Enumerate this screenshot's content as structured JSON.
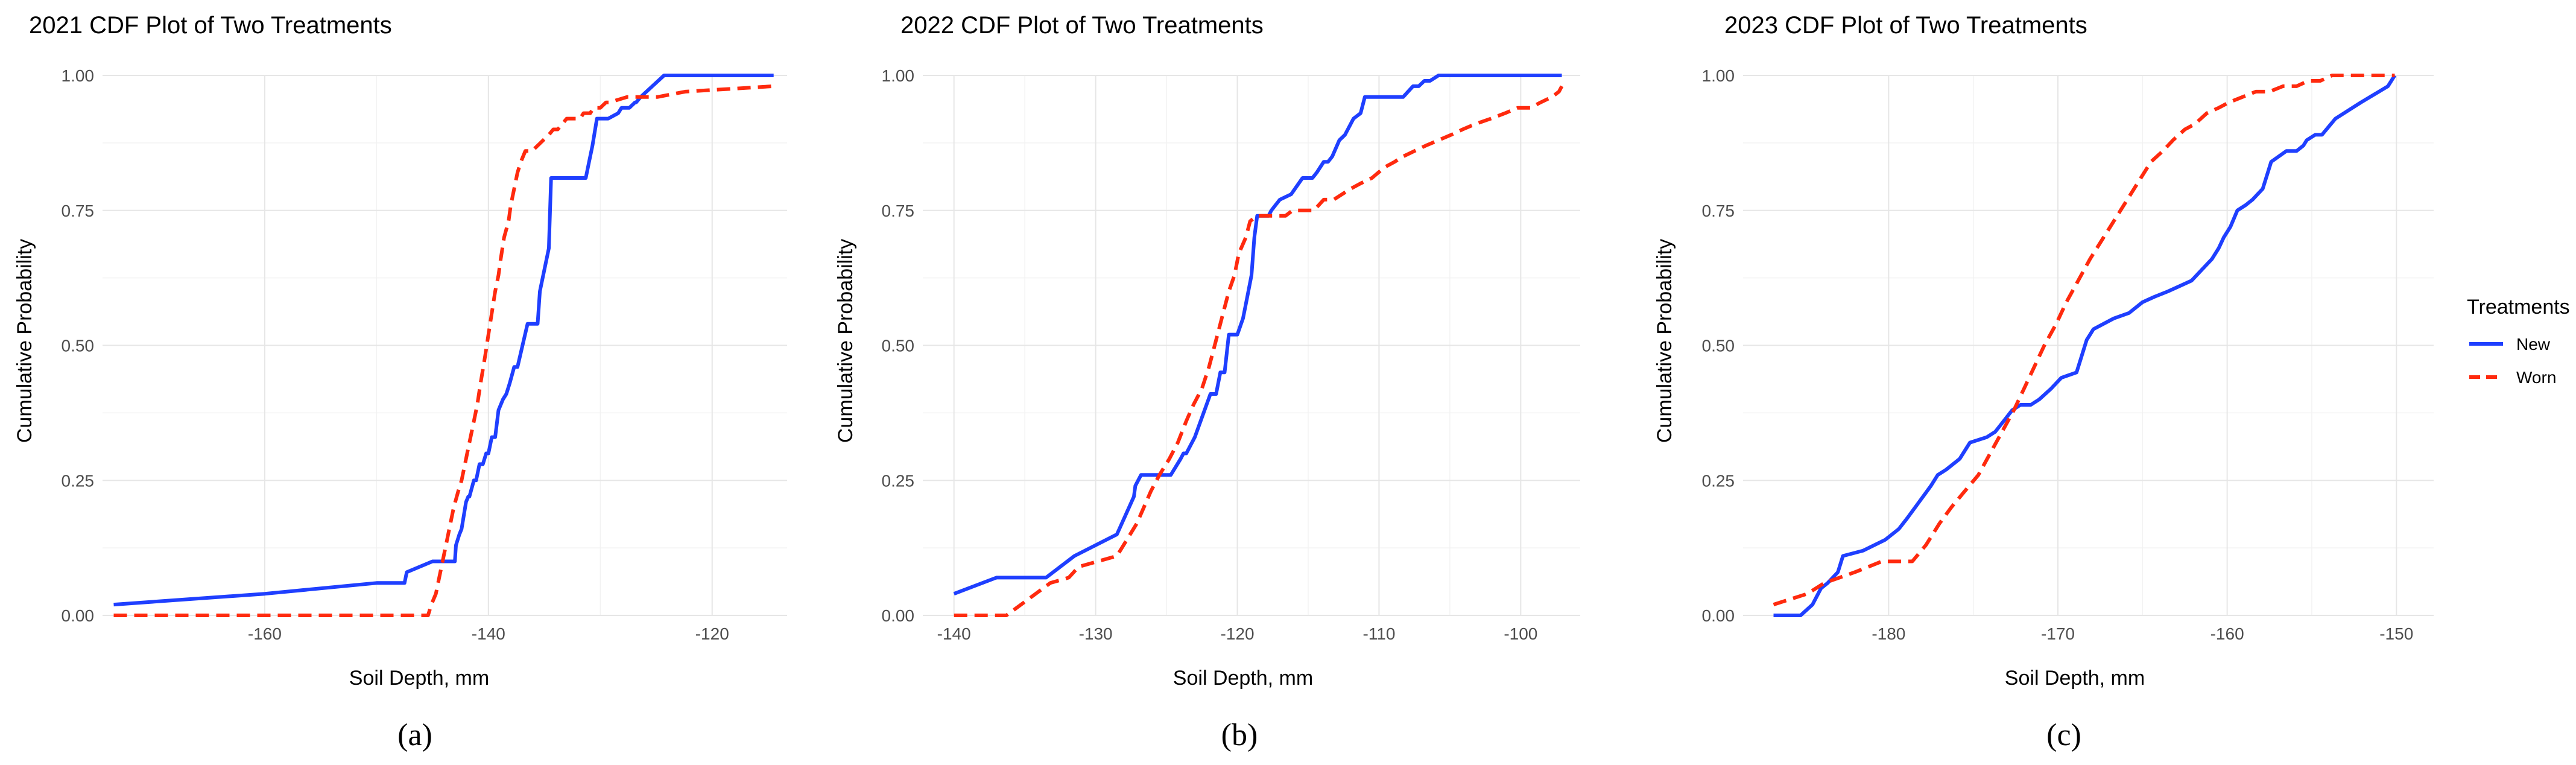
{
  "legend": {
    "title": "Treatments",
    "items": [
      {
        "name": "New",
        "color": "#1f3fff",
        "dash": "solid"
      },
      {
        "name": "Worn",
        "color": "#ff2a0e",
        "dash": "dashed"
      }
    ]
  },
  "chart_data": [
    {
      "type": "line",
      "panel_label": "(a)",
      "title": "2021 CDF Plot of Two Treatments",
      "xlabel": "Soil Depth, mm",
      "ylabel": "Cumulative Probability",
      "xlim": [
        -174.5,
        -113.3
      ],
      "ylim": [
        0,
        1
      ],
      "x_ticks": [
        -160,
        -140,
        -120
      ],
      "x_tick_labels": [
        "-160",
        "-140",
        "-120"
      ],
      "y_ticks": [
        0,
        0.25,
        0.5,
        0.75,
        1
      ],
      "y_tick_labels": [
        "0.00",
        "0.25",
        "0.50",
        "0.75",
        "1.00"
      ],
      "grid": true,
      "series": [
        {
          "name": "New",
          "color": "#1f3fff",
          "dash": "solid",
          "x": [
            -173.5,
            -160,
            -150,
            -147.5,
            -147.3,
            -145,
            -143,
            -142.9,
            -142.6,
            -142.4,
            -142,
            -141.8,
            -141.7,
            -141.3,
            -141.1,
            -140.8,
            -140.5,
            -140.2,
            -140,
            -139.7,
            -139.4,
            -139.1,
            -138.7,
            -138.4,
            -138.1,
            -137.7,
            -137.4,
            -136.5,
            -136.4,
            -136,
            -135.6,
            -135.4,
            -135.2,
            -134.9,
            -134.6,
            -134.4,
            -132.1,
            -131.9,
            -131.6,
            -131.3,
            -131,
            -130.7,
            -130.3,
            -129.3,
            -128.4,
            -128.1,
            -127.4,
            -126.9,
            -126.8,
            -126.4,
            -124.3,
            -124.2,
            -114.5
          ],
          "y": [
            0.02,
            0.04,
            0.06,
            0.06,
            0.08,
            0.1,
            0.1,
            0.13,
            0.15,
            0.16,
            0.21,
            0.22,
            0.22,
            0.25,
            0.25,
            0.28,
            0.28,
            0.3,
            0.3,
            0.33,
            0.33,
            0.38,
            0.4,
            0.41,
            0.43,
            0.46,
            0.46,
            0.54,
            0.54,
            0.54,
            0.54,
            0.6,
            0.62,
            0.65,
            0.68,
            0.81,
            0.81,
            0.81,
            0.81,
            0.81,
            0.84,
            0.87,
            0.92,
            0.92,
            0.93,
            0.94,
            0.94,
            0.95,
            0.95,
            0.96,
            1.0,
            1.0,
            1.0
          ]
        },
        {
          "name": "Worn",
          "color": "#ff2a0e",
          "dash": "dashed",
          "x": [
            -173.5,
            -160,
            -150,
            -145.4,
            -145.1,
            -144.7,
            -144.4,
            -144.1,
            -143.8,
            -143.5,
            -143.1,
            -142.7,
            -142.4,
            -142.1,
            -141.8,
            -141.4,
            -141,
            -140.7,
            -140.3,
            -140,
            -139.7,
            -139.4,
            -139.1,
            -138.9,
            -138.6,
            -138.2,
            -138,
            -137.7,
            -137.4,
            -137.1,
            -136.7,
            -136.4,
            -136.1,
            -135.6,
            -135.1,
            -134.6,
            -134.2,
            -133.8,
            -133.4,
            -133,
            -132.7,
            -132.4,
            -132.1,
            -131.8,
            -131.5,
            -131.2,
            -130.9,
            -130.6,
            -130.3,
            -130,
            -129.5,
            -129.2,
            -127.6,
            -125.4,
            -124.9,
            -122.4,
            -114.5
          ],
          "y": [
            0.0,
            0.0,
            0.0,
            0.0,
            0.02,
            0.04,
            0.07,
            0.1,
            0.13,
            0.16,
            0.2,
            0.23,
            0.25,
            0.28,
            0.31,
            0.35,
            0.39,
            0.43,
            0.48,
            0.52,
            0.56,
            0.6,
            0.63,
            0.66,
            0.7,
            0.73,
            0.76,
            0.79,
            0.82,
            0.84,
            0.86,
            0.86,
            0.86,
            0.87,
            0.88,
            0.89,
            0.9,
            0.9,
            0.91,
            0.92,
            0.92,
            0.92,
            0.92,
            0.92,
            0.93,
            0.93,
            0.93,
            0.94,
            0.94,
            0.94,
            0.95,
            0.95,
            0.96,
            0.96,
            0.96,
            0.97,
            0.98
          ]
        }
      ]
    },
    {
      "type": "line",
      "panel_label": "(b)",
      "title": "2022 CDF Plot of Two Treatments",
      "xlabel": "Soil Depth, mm",
      "ylabel": "Cumulative Probability",
      "xlim": [
        -142.2,
        -95.8
      ],
      "ylim": [
        0,
        1
      ],
      "x_ticks": [
        -140,
        -130,
        -120,
        -110,
        -100
      ],
      "x_tick_labels": [
        "-140",
        "-130",
        "-120",
        "-110",
        "-100"
      ],
      "y_ticks": [
        0,
        0.25,
        0.5,
        0.75,
        1
      ],
      "y_tick_labels": [
        "0.00",
        "0.25",
        "0.50",
        "0.75",
        "1.00"
      ],
      "grid": true,
      "series": [
        {
          "name": "New",
          "color": "#1f3fff",
          "dash": "solid",
          "x": [
            -140,
            -137,
            -133.5,
            -131.5,
            -128.5,
            -127.3,
            -127.2,
            -126.8,
            -125.5,
            -125,
            -124.7,
            -124,
            -123.8,
            -123.6,
            -123,
            -121.9,
            -121.5,
            -121.2,
            -120.9,
            -120.6,
            -120,
            -119.6,
            -119.3,
            -119,
            -118.8,
            -118.6,
            -118.4,
            -118.2,
            -117.8,
            -117.6,
            -117.3,
            -117,
            -116.2,
            -115.4,
            -114.7,
            -114.4,
            -113.9,
            -113.6,
            -113.3,
            -112.8,
            -112.4,
            -111.8,
            -111.3,
            -111,
            -110.6,
            -110.1,
            -108.3,
            -107.6,
            -107.2,
            -106.8,
            -106.4,
            -105.8,
            -97.1
          ],
          "y": [
            0.04,
            0.07,
            0.07,
            0.11,
            0.15,
            0.22,
            0.24,
            0.26,
            0.26,
            0.26,
            0.26,
            0.29,
            0.3,
            0.3,
            0.33,
            0.41,
            0.41,
            0.45,
            0.45,
            0.52,
            0.52,
            0.55,
            0.59,
            0.63,
            0.7,
            0.74,
            0.74,
            0.74,
            0.74,
            0.75,
            0.76,
            0.77,
            0.78,
            0.81,
            0.81,
            0.82,
            0.84,
            0.84,
            0.85,
            0.88,
            0.89,
            0.92,
            0.93,
            0.96,
            0.96,
            0.96,
            0.96,
            0.98,
            0.98,
            0.99,
            0.99,
            1.0,
            1.0
          ]
        },
        {
          "name": "Worn",
          "color": "#ff2a0e",
          "dash": "dashed",
          "x": [
            -140,
            -137,
            -136.3,
            -133.2,
            -131.9,
            -131.2,
            -128.5,
            -127.8,
            -127.1,
            -126.6,
            -126.1,
            -125.5,
            -124.8,
            -124.2,
            -123.6,
            -123.1,
            -122.5,
            -122,
            -121.7,
            -121.3,
            -121,
            -120.6,
            -120.2,
            -119.9,
            -119.4,
            -119.1,
            -118.6,
            -117.9,
            -117.2,
            -116.6,
            -116.1,
            -115.4,
            -114.6,
            -113.9,
            -113.2,
            -112.6,
            -112,
            -111.3,
            -110.5,
            -109.6,
            -108.9,
            -108.3,
            -107.5,
            -106.7,
            -105.8,
            -104.9,
            -104.1,
            -103.2,
            -102.1,
            -101.1,
            -100.2,
            -99.3,
            -98.6,
            -97.8,
            -97.3,
            -97.1
          ],
          "y": [
            0.0,
            0.0,
            0.0,
            0.06,
            0.07,
            0.09,
            0.11,
            0.14,
            0.17,
            0.2,
            0.23,
            0.26,
            0.29,
            0.32,
            0.36,
            0.39,
            0.42,
            0.46,
            0.49,
            0.53,
            0.56,
            0.6,
            0.63,
            0.67,
            0.7,
            0.73,
            0.74,
            0.74,
            0.74,
            0.74,
            0.75,
            0.75,
            0.75,
            0.77,
            0.77,
            0.78,
            0.79,
            0.8,
            0.81,
            0.83,
            0.84,
            0.85,
            0.86,
            0.87,
            0.88,
            0.89,
            0.9,
            0.91,
            0.92,
            0.93,
            0.94,
            0.94,
            0.95,
            0.96,
            0.97,
            0.98
          ]
        }
      ]
    },
    {
      "type": "line",
      "panel_label": "(c)",
      "title": "2023 CDF Plot of Two Treatments",
      "xlabel": "Soil Depth, mm",
      "ylabel": "Cumulative Probability",
      "xlim": [
        -188.6,
        -147.8
      ],
      "ylim": [
        0,
        1
      ],
      "x_ticks": [
        -180,
        -170,
        -160,
        -150
      ],
      "x_tick_labels": [
        "-180",
        "-170",
        "-160",
        "-150"
      ],
      "y_ticks": [
        0,
        0.25,
        0.5,
        0.75,
        1
      ],
      "y_tick_labels": [
        "0.00",
        "0.25",
        "0.50",
        "0.75",
        "1.00"
      ],
      "grid": true,
      "series": [
        {
          "name": "New",
          "color": "#1f3fff",
          "dash": "solid",
          "x": [
            -186.8,
            -185.2,
            -184.5,
            -184,
            -183.6,
            -183,
            -182.7,
            -181.5,
            -180.2,
            -179.4,
            -178.9,
            -178.2,
            -177.5,
            -177.1,
            -176.6,
            -175.8,
            -175.2,
            -174.2,
            -173.7,
            -173.2,
            -172.7,
            -172.2,
            -171.6,
            -171.1,
            -170.4,
            -169.8,
            -168.9,
            -168.3,
            -168.1,
            -167.9,
            -167.3,
            -166.7,
            -165.8,
            -165,
            -164.3,
            -163.5,
            -162.8,
            -162.1,
            -161.5,
            -160.9,
            -160.5,
            -160.2,
            -159.8,
            -159.4,
            -158.9,
            -158.5,
            -158.2,
            -157.9,
            -157.4,
            -156.5,
            -155.9,
            -155.5,
            -155.3,
            -154.8,
            -154.4,
            -153.6,
            -152.1,
            -150.5,
            -150.1
          ],
          "y": [
            0.0,
            0.0,
            0.02,
            0.05,
            0.06,
            0.08,
            0.11,
            0.12,
            0.14,
            0.16,
            0.18,
            0.21,
            0.24,
            0.26,
            0.27,
            0.29,
            0.32,
            0.33,
            0.34,
            0.36,
            0.38,
            0.39,
            0.39,
            0.4,
            0.42,
            0.44,
            0.45,
            0.51,
            0.52,
            0.53,
            0.54,
            0.55,
            0.56,
            0.58,
            0.59,
            0.6,
            0.61,
            0.62,
            0.64,
            0.66,
            0.68,
            0.7,
            0.72,
            0.75,
            0.76,
            0.77,
            0.78,
            0.79,
            0.84,
            0.86,
            0.86,
            0.87,
            0.88,
            0.89,
            0.89,
            0.92,
            0.95,
            0.98,
            1.0
          ]
        },
        {
          "name": "Worn",
          "color": "#ff2a0e",
          "dash": "dashed",
          "x": [
            -186.8,
            -185.8,
            -184.8,
            -183.8,
            -182.9,
            -182,
            -181.2,
            -180.4,
            -179.5,
            -178.6,
            -177.8,
            -177,
            -176.3,
            -175.5,
            -174.7,
            -174,
            -173.3,
            -172.6,
            -172,
            -171.4,
            -170.8,
            -170.1,
            -169.5,
            -168.8,
            -168.1,
            -167.5,
            -166.9,
            -166.3,
            -165.7,
            -165.1,
            -164.5,
            -163.8,
            -163.2,
            -162.5,
            -161.9,
            -161.2,
            -160.5,
            -159.9,
            -159.1,
            -158.3,
            -157.5,
            -156.7,
            -155.9,
            -155.2,
            -154.5,
            -153.8,
            -153,
            -152.2,
            -151.3,
            -150.5,
            -150.1
          ],
          "y": [
            0.02,
            0.03,
            0.04,
            0.06,
            0.07,
            0.08,
            0.09,
            0.1,
            0.1,
            0.1,
            0.13,
            0.17,
            0.2,
            0.23,
            0.26,
            0.3,
            0.34,
            0.38,
            0.42,
            0.46,
            0.5,
            0.54,
            0.58,
            0.62,
            0.66,
            0.69,
            0.72,
            0.75,
            0.78,
            0.81,
            0.84,
            0.86,
            0.88,
            0.9,
            0.91,
            0.93,
            0.94,
            0.95,
            0.96,
            0.97,
            0.97,
            0.98,
            0.98,
            0.99,
            0.99,
            1.0,
            1.0,
            1.0,
            1.0,
            1.0,
            1.0
          ]
        }
      ]
    }
  ]
}
